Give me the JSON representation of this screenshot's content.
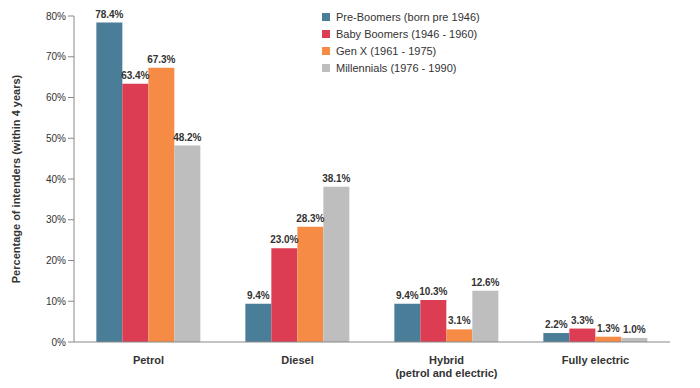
{
  "chart_data": {
    "type": "bar",
    "y_label": "Percentage of intenders (within 4 years)",
    "categories": [
      "Petrol",
      "Diesel",
      "Hybrid\n(petrol and electric)",
      "Fully electric"
    ],
    "series": [
      {
        "name": "Pre-Boomers (born pre 1946)",
        "color": "#4A7E98",
        "values": [
          78.4,
          9.4,
          9.4,
          2.2
        ],
        "value_labels": [
          "78.4%",
          "9.4%",
          "9.4%",
          "2.2%"
        ]
      },
      {
        "name": "Baby Boomers (1946 - 1960)",
        "color": "#DC3D53",
        "values": [
          63.4,
          23.0,
          10.3,
          3.3
        ],
        "value_labels": [
          "63.4%",
          "23.0%",
          "10.3%",
          "3.3%"
        ]
      },
      {
        "name": "Gen X (1961 - 1975)",
        "color": "#F58B45",
        "values": [
          67.3,
          28.3,
          3.1,
          1.3
        ],
        "value_labels": [
          "67.3%",
          "28.3%",
          "3.1%",
          "1.3%"
        ]
      },
      {
        "name": "Millennials (1976 - 1990)",
        "color": "#BEBEBE",
        "values": [
          48.2,
          38.1,
          12.6,
          1.0
        ],
        "value_labels": [
          "48.2%",
          "38.1%",
          "12.6%",
          "1.0%"
        ]
      }
    ],
    "ylim": [
      0,
      80
    ],
    "yticks": [
      {
        "value": 0,
        "label": "0%"
      },
      {
        "value": 10,
        "label": "10%"
      },
      {
        "value": 20,
        "label": "20%"
      },
      {
        "value": 30,
        "label": "30%"
      },
      {
        "value": 40,
        "label": "40%"
      },
      {
        "value": 50,
        "label": "50%"
      },
      {
        "value": 60,
        "label": "60%"
      },
      {
        "value": 70,
        "label": "70%"
      },
      {
        "value": 80,
        "label": "80%"
      }
    ],
    "grid": false,
    "legend": "top",
    "data_labels": true
  }
}
